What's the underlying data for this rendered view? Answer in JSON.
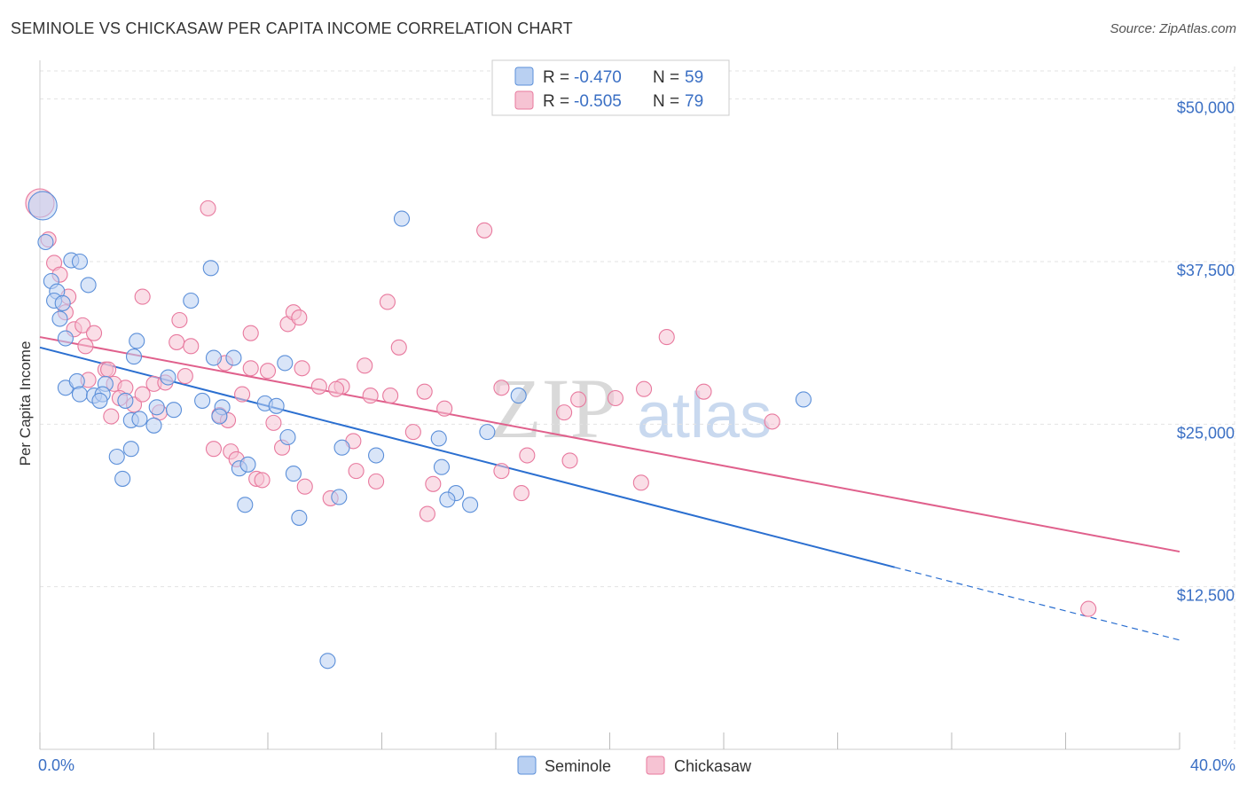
{
  "title": "SEMINOLE VS CHICKASAW PER CAPITA INCOME CORRELATION CHART",
  "source": "Source: ZipAtlas.com",
  "watermark": {
    "zip": "ZIP",
    "atlas": "atlas"
  },
  "colors": {
    "seminole": "#5b8fd9",
    "seminole_fill": "#b9d0f2",
    "seminole_line": "#2b6fd0",
    "chickasaw": "#e8799e",
    "chickasaw_fill": "#f6c3d3",
    "chickasaw_line": "#e0608c",
    "grid": "#e3e3e3",
    "axis_text": "#3a6fc4"
  },
  "legend": {
    "rows": [
      {
        "r_label": "R = ",
        "r_value": "-0.470",
        "n_label": "N = ",
        "n_value": "59",
        "series": "seminole"
      },
      {
        "r_label": "R = ",
        "r_value": "-0.505",
        "n_label": "N = ",
        "n_value": "79",
        "series": "chickasaw"
      }
    ]
  },
  "bottom_legend": [
    "Seminole",
    "Chickasaw"
  ],
  "chart_data": {
    "type": "scatter",
    "title": "SEMINOLE VS CHICKASAW PER CAPITA INCOME CORRELATION CHART",
    "xlabel": "",
    "ylabel": "Per Capita Income",
    "xlim": [
      0,
      40
    ],
    "ylim": [
      0,
      52500
    ],
    "x_tick_labels": [
      "0.0%",
      "40.0%"
    ],
    "y_ticks": [
      12500,
      25000,
      37500,
      50000
    ],
    "y_tick_labels": [
      "$12,500",
      "$25,000",
      "$37,500",
      "$50,000"
    ],
    "grid": true,
    "legend_position": "top-center",
    "series": [
      {
        "name": "Seminole",
        "R": -0.47,
        "N": 59,
        "trend": {
          "x0": 0,
          "y0": 30900,
          "x1": 30,
          "y1": 14000,
          "dashed_to_x": 40,
          "dashed_to_y": 8400
        },
        "points": [
          [
            0.1,
            41800
          ],
          [
            0.2,
            39000
          ],
          [
            0.4,
            36000
          ],
          [
            0.6,
            35200
          ],
          [
            0.5,
            34500
          ],
          [
            0.8,
            34300
          ],
          [
            0.7,
            33100
          ],
          [
            1.1,
            37600
          ],
          [
            1.4,
            37500
          ],
          [
            1.7,
            35700
          ],
          [
            0.9,
            31600
          ],
          [
            0.9,
            27800
          ],
          [
            1.3,
            28300
          ],
          [
            1.4,
            27300
          ],
          [
            1.9,
            27200
          ],
          [
            2.3,
            28100
          ],
          [
            2.2,
            27300
          ],
          [
            2.1,
            26800
          ],
          [
            3.3,
            30200
          ],
          [
            3.4,
            31400
          ],
          [
            3.0,
            26800
          ],
          [
            3.2,
            25300
          ],
          [
            3.5,
            25400
          ],
          [
            4.0,
            24900
          ],
          [
            4.1,
            26300
          ],
          [
            4.5,
            28600
          ],
          [
            4.7,
            26100
          ],
          [
            5.3,
            34500
          ],
          [
            5.7,
            26800
          ],
          [
            6.0,
            37000
          ],
          [
            6.1,
            30100
          ],
          [
            6.4,
            26300
          ],
          [
            6.3,
            25600
          ],
          [
            6.8,
            30100
          ],
          [
            7.0,
            21600
          ],
          [
            7.3,
            21900
          ],
          [
            7.2,
            18800
          ],
          [
            7.9,
            26600
          ],
          [
            8.3,
            26400
          ],
          [
            8.6,
            29700
          ],
          [
            8.7,
            24000
          ],
          [
            8.9,
            21200
          ],
          [
            9.1,
            17800
          ],
          [
            2.7,
            22500
          ],
          [
            3.2,
            23100
          ],
          [
            2.9,
            20800
          ],
          [
            10.6,
            23200
          ],
          [
            10.5,
            19400
          ],
          [
            11.8,
            22600
          ],
          [
            12.7,
            40800
          ],
          [
            14.0,
            23900
          ],
          [
            14.1,
            21700
          ],
          [
            14.6,
            19700
          ],
          [
            14.3,
            19200
          ],
          [
            15.1,
            18800
          ],
          [
            15.7,
            24400
          ],
          [
            16.8,
            27200
          ],
          [
            26.8,
            26900
          ],
          [
            10.1,
            6800
          ]
        ]
      },
      {
        "name": "Chickasaw",
        "R": -0.505,
        "N": 79,
        "trend": {
          "x0": 0,
          "y0": 31700,
          "x1": 40,
          "y1": 15200
        },
        "points": [
          [
            0.0,
            42000
          ],
          [
            0.3,
            39200
          ],
          [
            0.5,
            37400
          ],
          [
            0.7,
            36500
          ],
          [
            1.0,
            34800
          ],
          [
            0.9,
            33600
          ],
          [
            1.2,
            32300
          ],
          [
            1.5,
            32600
          ],
          [
            1.9,
            32000
          ],
          [
            2.3,
            29200
          ],
          [
            1.7,
            28400
          ],
          [
            2.6,
            28100
          ],
          [
            3.0,
            27800
          ],
          [
            2.8,
            27000
          ],
          [
            3.3,
            26500
          ],
          [
            2.5,
            25600
          ],
          [
            3.6,
            27300
          ],
          [
            4.0,
            28100
          ],
          [
            4.2,
            25900
          ],
          [
            3.6,
            34800
          ],
          [
            4.8,
            31300
          ],
          [
            4.9,
            33000
          ],
          [
            5.1,
            28700
          ],
          [
            4.4,
            28200
          ],
          [
            5.3,
            31000
          ],
          [
            5.9,
            41600
          ],
          [
            6.1,
            23100
          ],
          [
            6.3,
            25700
          ],
          [
            6.6,
            25300
          ],
          [
            6.7,
            22900
          ],
          [
            6.9,
            22300
          ],
          [
            7.1,
            27300
          ],
          [
            7.4,
            29300
          ],
          [
            7.4,
            32000
          ],
          [
            7.6,
            20800
          ],
          [
            8.0,
            29100
          ],
          [
            8.2,
            25100
          ],
          [
            7.8,
            20700
          ],
          [
            8.5,
            23200
          ],
          [
            8.7,
            32700
          ],
          [
            8.9,
            33600
          ],
          [
            9.1,
            33200
          ],
          [
            9.2,
            29300
          ],
          [
            9.3,
            20200
          ],
          [
            9.8,
            27900
          ],
          [
            10.2,
            19300
          ],
          [
            10.6,
            27900
          ],
          [
            11.0,
            23700
          ],
          [
            11.1,
            21400
          ],
          [
            11.4,
            29500
          ],
          [
            11.6,
            27200
          ],
          [
            11.8,
            20600
          ],
          [
            12.2,
            34400
          ],
          [
            12.3,
            27200
          ],
          [
            12.6,
            30900
          ],
          [
            13.1,
            24400
          ],
          [
            13.5,
            27500
          ],
          [
            13.6,
            18100
          ],
          [
            13.8,
            20400
          ],
          [
            14.2,
            26200
          ],
          [
            15.6,
            39900
          ],
          [
            16.2,
            27800
          ],
          [
            16.2,
            21400
          ],
          [
            16.9,
            19700
          ],
          [
            17.1,
            22600
          ],
          [
            18.4,
            25900
          ],
          [
            18.6,
            22200
          ],
          [
            18.9,
            26900
          ],
          [
            20.2,
            27000
          ],
          [
            21.1,
            20500
          ],
          [
            21.2,
            27700
          ],
          [
            22.0,
            31700
          ],
          [
            23.3,
            27500
          ],
          [
            25.7,
            25200
          ],
          [
            36.8,
            10800
          ],
          [
            2.4,
            29200
          ],
          [
            1.6,
            31000
          ],
          [
            10.4,
            27700
          ],
          [
            6.5,
            29700
          ]
        ]
      }
    ]
  }
}
